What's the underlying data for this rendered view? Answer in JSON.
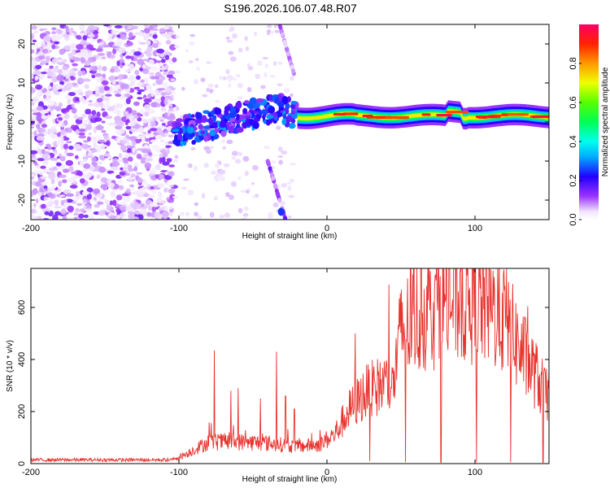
{
  "title": "S196.2026.106.07.48.R07",
  "chart_data": [
    {
      "type": "heatmap",
      "xlabel": "Height of straight line (km)",
      "ylabel": "Frequency (Hz)",
      "xlim": [
        -200,
        150
      ],
      "ylim": [
        -25,
        25
      ],
      "x_ticks": [
        "-200",
        "-100",
        "0",
        "100"
      ],
      "x_tick_values": [
        -200,
        -100,
        0,
        100
      ],
      "y_ticks": [
        "20",
        "10",
        "0",
        "-10",
        "-20"
      ],
      "y_tick_values": [
        20,
        10,
        0,
        -10,
        -20
      ],
      "colorbar": {
        "label": "Normalized spectral amplitude",
        "ticks": [
          "0.0",
          "0.2",
          "0.4",
          "0.6",
          "0.8"
        ],
        "tick_values": [
          0.0,
          0.2,
          0.4,
          0.6,
          0.8
        ],
        "range": [
          0,
          1
        ]
      },
      "features": [
        {
          "name": "noise-field",
          "x_range": [
            -200,
            -103
          ],
          "freq_range": [
            -25,
            25
          ],
          "amplitude": 0.1
        },
        {
          "name": "meteor-head-trail",
          "x_range": [
            -103,
            -20
          ],
          "freq_start": -3,
          "freq_end": 5,
          "amplitude": 0.4
        },
        {
          "name": "straight-line-echo",
          "x_range": [
            -20,
            150
          ],
          "freq": 1.5,
          "amplitude": 0.95
        },
        {
          "name": "upper-spur",
          "x_range": [
            -32,
            -22
          ],
          "freq_range": [
            12,
            25
          ],
          "amplitude": 0.08
        },
        {
          "name": "lower-spur",
          "x_range": [
            -40,
            -28
          ],
          "freq_range": [
            -25,
            -10
          ],
          "amplitude": 0.12
        }
      ]
    },
    {
      "type": "line",
      "xlabel": "Height of straight line (km)",
      "ylabel": "SNR (10 * v/v)",
      "xlim": [
        -200,
        150
      ],
      "ylim": [
        0,
        750
      ],
      "x_ticks": [
        "-200",
        "-100",
        "0",
        "100"
      ],
      "x_tick_values": [
        -200,
        -100,
        0,
        100
      ],
      "y_ticks": [
        "0",
        "200",
        "400",
        "600"
      ],
      "y_tick_values": [
        0,
        200,
        400,
        600
      ],
      "color": "#e8322d",
      "envelope": [
        [
          -200,
          15
        ],
        [
          -105,
          15
        ],
        [
          -95,
          40
        ],
        [
          -80,
          90
        ],
        [
          -60,
          90
        ],
        [
          -40,
          85
        ],
        [
          -20,
          70
        ],
        [
          -5,
          80
        ],
        [
          5,
          120
        ],
        [
          15,
          220
        ],
        [
          25,
          290
        ],
        [
          35,
          320
        ],
        [
          45,
          340
        ],
        [
          50,
          550
        ],
        [
          60,
          600
        ],
        [
          70,
          640
        ],
        [
          80,
          670
        ],
        [
          90,
          680
        ],
        [
          100,
          670
        ],
        [
          110,
          650
        ],
        [
          120,
          600
        ],
        [
          130,
          480
        ],
        [
          140,
          380
        ],
        [
          150,
          260
        ]
      ],
      "spikes": [
        [
          -76,
          435
        ],
        [
          -65,
          280
        ],
        [
          -60,
          290
        ],
        [
          -45,
          250
        ],
        [
          -34,
          430
        ],
        [
          -28,
          260
        ],
        [
          -22,
          210
        ],
        [
          19,
          500
        ],
        [
          36,
          390
        ],
        [
          44,
          370
        ],
        [
          73,
          720
        ],
        [
          90,
          740
        ],
        [
          103,
          720
        ]
      ],
      "dropouts": [
        [
          29,
          10
        ],
        [
          53,
          5
        ],
        [
          77,
          5
        ],
        [
          101,
          5
        ],
        [
          124,
          5
        ],
        [
          146,
          5
        ]
      ]
    }
  ]
}
